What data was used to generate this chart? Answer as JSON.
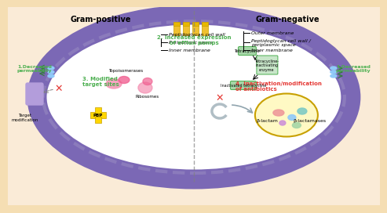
{
  "bg_color": "#f5deb3",
  "bg_color_light": "#faebd7",
  "cell_fill": "#ffffff",
  "membrane_outer_color": "#7b68b5",
  "membrane_inner_color": "#9b8ec4",
  "title_gp": "Gram-positive",
  "title_gn": "Gram-negative",
  "label_1_gp": "1.Decreased\npermeability",
  "label_1_gn": "1.Decreased\npermeability",
  "label_2": "2. Increased expression\nof efflux pumps",
  "label_3": "3. Modified\ntarget sites",
  "label_4": "4. Inactivation/modification\nof antibiotics",
  "gp_annotations": [
    "Peptidoglycan cell wall",
    "Periplasmic space",
    "Inner membrane"
  ],
  "gn_annotations": [
    "Outer membrane",
    "Peptidoglycan cell wall /\nperiplasmic space",
    "Inner membrane"
  ],
  "tetracycline_label": "Tetracycline",
  "tetracycline_enzyme": "Tetracycline-\ninactivating\nenzyme",
  "inactivated_label": "Inactivated tetracycline",
  "beta_lactam_label": "β-lactam",
  "beta_lactamase_label": "β-lactamases",
  "target_mod_label": "Target\nmodification",
  "pbp_label": "PBP",
  "topoisomerase_label": "Topoisomerases",
  "ribosome_label": "Ribosomes",
  "green_color": "#4caf50",
  "dark_green": "#2e7d32",
  "red_color": "#e53935",
  "orange_color": "#ff8c00",
  "yellow_color": "#ffd700",
  "purple_color": "#9c27b0",
  "blue_color": "#1565c0",
  "pink_color": "#f48fb1",
  "light_blue": "#90caf9",
  "gray_arrow": "#b0bec5",
  "brown_text": "#8b4513",
  "dark_brown": "#5d4037"
}
